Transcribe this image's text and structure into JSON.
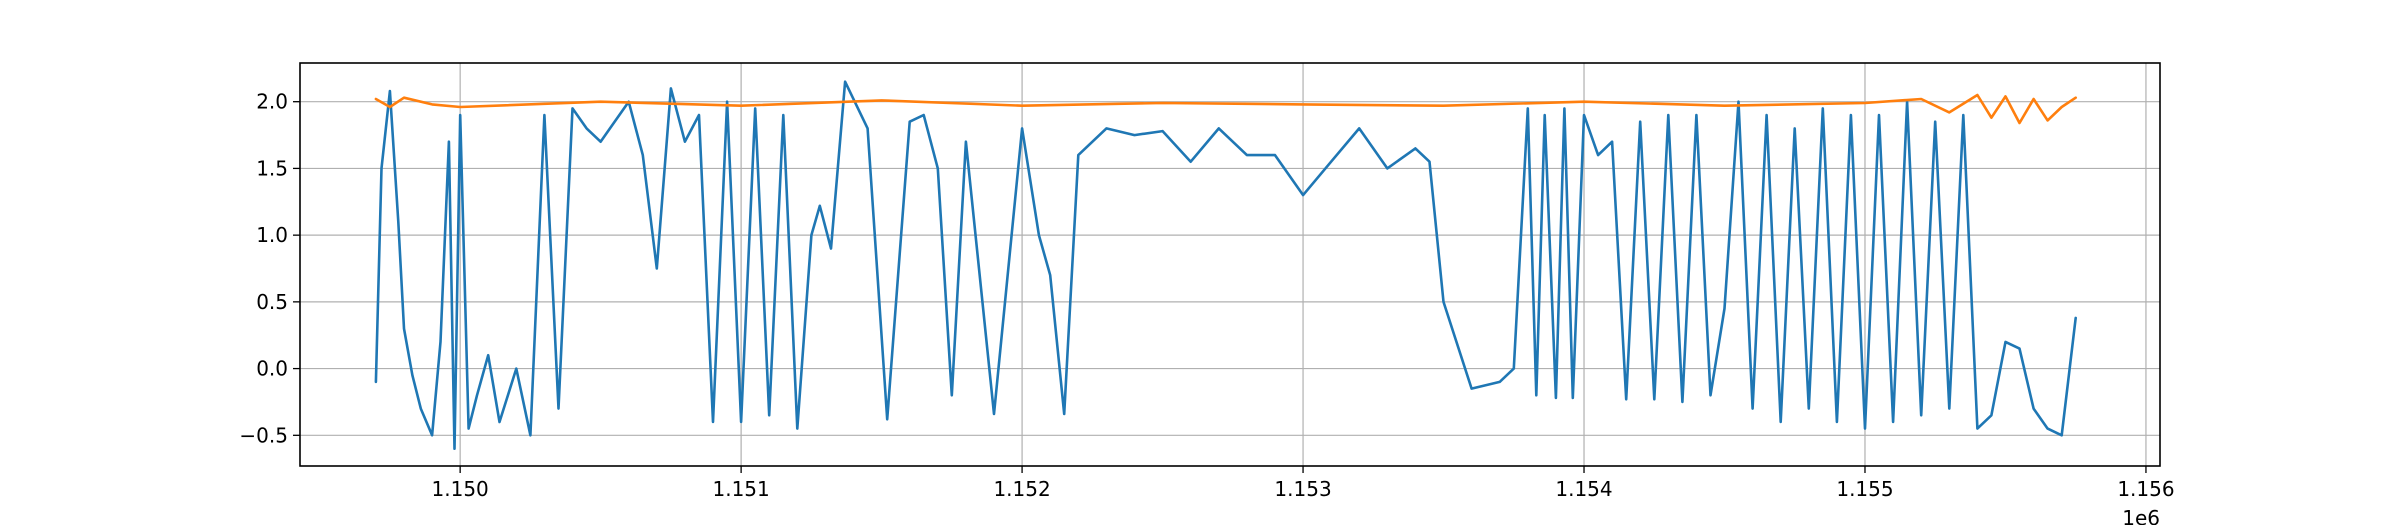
{
  "chart_data": {
    "type": "line",
    "title": "",
    "xlabel": "",
    "ylabel": "",
    "x_offset_label": "1e6",
    "xlim": [
      1.14943,
      1.15605
    ],
    "ylim": [
      -0.73,
      2.29
    ],
    "x_ticks": [
      1.15,
      1.151,
      1.152,
      1.153,
      1.154,
      1.155,
      1.156
    ],
    "x_tick_labels": [
      "1.150",
      "1.151",
      "1.152",
      "1.153",
      "1.154",
      "1.155",
      "1.156"
    ],
    "y_ticks": [
      -0.5,
      0.0,
      0.5,
      1.0,
      1.5,
      2.0
    ],
    "y_tick_labels": [
      "−0.5",
      "0.0",
      "0.5",
      "1.0",
      "1.5",
      "2.0"
    ],
    "grid": true,
    "legend": "none",
    "series": [
      {
        "color": "#1f77b4",
        "x": [
          1.1497,
          1.14972,
          1.14975,
          1.14978,
          1.1498,
          1.14983,
          1.14986,
          1.1499,
          1.14993,
          1.14996,
          1.14998,
          1.15,
          1.15003,
          1.15006,
          1.1501,
          1.15014,
          1.1502,
          1.15025,
          1.1503,
          1.15035,
          1.1504,
          1.15045,
          1.1505,
          1.1506,
          1.15065,
          1.1507,
          1.15075,
          1.1508,
          1.15085,
          1.1509,
          1.15095,
          1.151,
          1.15105,
          1.1511,
          1.15115,
          1.1512,
          1.15125,
          1.15128,
          1.15132,
          1.15137,
          1.15145,
          1.15152,
          1.1516,
          1.15165,
          1.1517,
          1.15175,
          1.1518,
          1.1519,
          1.152,
          1.15206,
          1.1521,
          1.15215,
          1.1522,
          1.1523,
          1.1524,
          1.1525,
          1.1526,
          1.1527,
          1.1528,
          1.1529,
          1.153,
          1.1531,
          1.1532,
          1.1533,
          1.1534,
          1.15345,
          1.1535,
          1.1536,
          1.1537,
          1.15375,
          1.1538,
          1.15383,
          1.15386,
          1.1539,
          1.15393,
          1.15396,
          1.154,
          1.15405,
          1.1541,
          1.15415,
          1.1542,
          1.15425,
          1.1543,
          1.15435,
          1.1544,
          1.15445,
          1.1545,
          1.15455,
          1.1546,
          1.15465,
          1.1547,
          1.15475,
          1.1548,
          1.15485,
          1.1549,
          1.15495,
          1.155,
          1.15505,
          1.1551,
          1.15515,
          1.1552,
          1.15525,
          1.1553,
          1.15535,
          1.1554,
          1.15545,
          1.1555,
          1.15555,
          1.1556,
          1.15565,
          1.1557,
          1.15575
        ],
        "y": [
          -0.1,
          1.5,
          2.08,
          1.1,
          0.3,
          -0.05,
          -0.3,
          -0.5,
          0.2,
          1.7,
          -0.6,
          1.9,
          -0.45,
          -0.2,
          0.1,
          -0.4,
          0.0,
          -0.5,
          1.9,
          -0.3,
          1.95,
          1.8,
          1.7,
          2.0,
          1.6,
          0.75,
          2.1,
          1.7,
          1.9,
          -0.4,
          2.0,
          -0.4,
          1.95,
          -0.35,
          1.9,
          -0.45,
          1.0,
          1.22,
          0.9,
          2.15,
          1.8,
          -0.38,
          1.85,
          1.9,
          1.5,
          -0.2,
          1.7,
          -0.34,
          1.8,
          1.0,
          0.7,
          -0.34,
          1.6,
          1.8,
          1.75,
          1.78,
          1.55,
          1.8,
          1.6,
          1.6,
          1.3,
          1.55,
          1.8,
          1.5,
          1.65,
          1.55,
          0.5,
          -0.15,
          -0.1,
          0.0,
          1.95,
          -0.2,
          1.9,
          -0.22,
          1.95,
          -0.22,
          1.9,
          1.6,
          1.7,
          -0.23,
          1.85,
          -0.23,
          1.9,
          -0.25,
          1.9,
          -0.2,
          0.45,
          2.0,
          -0.3,
          1.9,
          -0.4,
          1.8,
          -0.3,
          1.95,
          -0.4,
          1.9,
          -0.45,
          1.9,
          -0.4,
          2.0,
          -0.35,
          1.85,
          -0.3,
          1.9,
          -0.45,
          -0.35,
          0.2,
          0.15,
          -0.3,
          -0.45,
          -0.5,
          0.38
        ]
      },
      {
        "color": "#ff7f0e",
        "x": [
          1.1497,
          1.14975,
          1.1498,
          1.1499,
          1.15,
          1.1505,
          1.151,
          1.1515,
          1.152,
          1.1525,
          1.153,
          1.1535,
          1.154,
          1.1545,
          1.155,
          1.1552,
          1.1553,
          1.1554,
          1.15545,
          1.1555,
          1.15555,
          1.1556,
          1.15565,
          1.1557,
          1.15575
        ],
        "y": [
          2.02,
          1.96,
          2.03,
          1.98,
          1.96,
          2.0,
          1.97,
          2.01,
          1.97,
          1.99,
          1.98,
          1.97,
          2.0,
          1.97,
          1.99,
          2.02,
          1.92,
          2.05,
          1.88,
          2.04,
          1.84,
          2.02,
          1.86,
          1.96,
          2.03
        ]
      }
    ]
  }
}
